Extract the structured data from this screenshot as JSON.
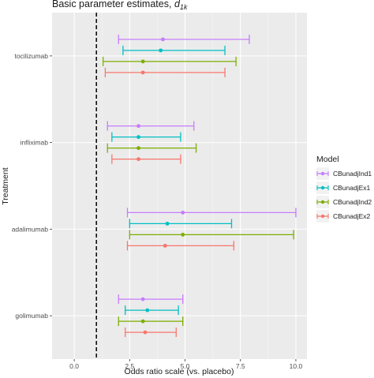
{
  "chart_data": {
    "type": "forest",
    "title": "Basic parameter estimates,",
    "title_math": "d",
    "title_sub": "1k",
    "xlabel": "Odds ratio scale (vs. placebo)",
    "ylabel": "Treatment",
    "xlim": [
      -1.0,
      10.5
    ],
    "xticks": [
      0.0,
      2.5,
      5.0,
      7.5,
      10.0
    ],
    "xtick_labels": [
      "0.0",
      "2.5",
      "5.0",
      "7.5",
      "10.0"
    ],
    "reference_line": 1.0,
    "grid": true,
    "legend_position": "right",
    "legend_title": "Model",
    "series": [
      {
        "name": "CBunadjInd1",
        "color": "#c77cff"
      },
      {
        "name": "CBunadjEx1",
        "color": "#00bfc4"
      },
      {
        "name": "CBunadjInd2",
        "color": "#7cae00"
      },
      {
        "name": "CBunadjEx2",
        "color": "#f8766d"
      }
    ],
    "categories": [
      "tocilizumab",
      "infliximab",
      "adalimumab",
      "golimumab"
    ],
    "estimates": [
      {
        "treatment": "tocilizumab",
        "values": [
          {
            "model": "CBunadjInd1",
            "estimate": 4.0,
            "lower": 2.0,
            "upper": 7.9
          },
          {
            "model": "CBunadjEx1",
            "estimate": 3.9,
            "lower": 2.2,
            "upper": 6.8
          },
          {
            "model": "CBunadjInd2",
            "estimate": 3.1,
            "lower": 1.3,
            "upper": 7.3
          },
          {
            "model": "CBunadjEx2",
            "estimate": 3.1,
            "lower": 1.4,
            "upper": 6.8
          }
        ]
      },
      {
        "treatment": "infliximab",
        "values": [
          {
            "model": "CBunadjInd1",
            "estimate": 2.9,
            "lower": 1.5,
            "upper": 5.4
          },
          {
            "model": "CBunadjEx1",
            "estimate": 2.9,
            "lower": 1.7,
            "upper": 4.8
          },
          {
            "model": "CBunadjInd2",
            "estimate": 2.9,
            "lower": 1.5,
            "upper": 5.5
          },
          {
            "model": "CBunadjEx2",
            "estimate": 2.9,
            "lower": 1.7,
            "upper": 4.8
          }
        ]
      },
      {
        "treatment": "adalimumab",
        "values": [
          {
            "model": "CBunadjInd1",
            "estimate": 4.9,
            "lower": 2.4,
            "upper": 10.0
          },
          {
            "model": "CBunadjEx1",
            "estimate": 4.2,
            "lower": 2.5,
            "upper": 7.1
          },
          {
            "model": "CBunadjInd2",
            "estimate": 4.9,
            "lower": 2.5,
            "upper": 9.9
          },
          {
            "model": "CBunadjEx2",
            "estimate": 4.1,
            "lower": 2.4,
            "upper": 7.2
          }
        ]
      },
      {
        "treatment": "golimumab",
        "values": [
          {
            "model": "CBunadjInd1",
            "estimate": 3.1,
            "lower": 2.0,
            "upper": 4.9
          },
          {
            "model": "CBunadjEx1",
            "estimate": 3.3,
            "lower": 2.3,
            "upper": 4.7
          },
          {
            "model": "CBunadjInd2",
            "estimate": 3.1,
            "lower": 2.0,
            "upper": 4.9
          },
          {
            "model": "CBunadjEx2",
            "estimate": 3.2,
            "lower": 2.3,
            "upper": 4.6
          }
        ]
      }
    ]
  }
}
